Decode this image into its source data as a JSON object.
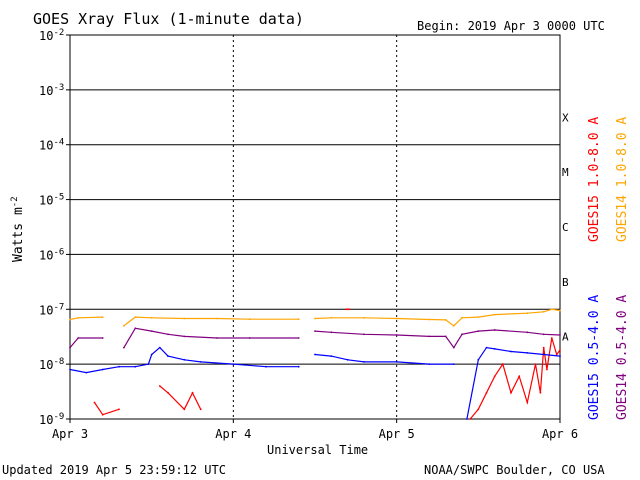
{
  "chart_data": {
    "type": "line",
    "title": "GOES Xray Flux (1-minute data)",
    "begin_label": "Begin:  2019 Apr 3 0000 UTC",
    "xlabel": "Universal Time",
    "ylabel": "Watts m",
    "ylabel_superscript": "-2",
    "x_tick_labels": [
      "Apr 3",
      "Apr 4",
      "Apr 5",
      "Apr 6"
    ],
    "xlim_days": [
      0,
      3
    ],
    "ylim_log10": [
      -9,
      -2
    ],
    "y_ticks": [
      {
        "base": "10",
        "exp": "-2"
      },
      {
        "base": "10",
        "exp": "-3"
      },
      {
        "base": "10",
        "exp": "-4"
      },
      {
        "base": "10",
        "exp": "-5"
      },
      {
        "base": "10",
        "exp": "-6"
      },
      {
        "base": "10",
        "exp": "-7"
      },
      {
        "base": "10",
        "exp": "-8"
      },
      {
        "base": "10",
        "exp": "-9"
      }
    ],
    "flare_classes": [
      {
        "label": "X",
        "log10": -3.5
      },
      {
        "label": "M",
        "log10": -4.5
      },
      {
        "label": "C",
        "log10": -5.5
      },
      {
        "label": "B",
        "log10": -6.5
      },
      {
        "label": "A",
        "log10": -7.5
      }
    ],
    "series": [
      {
        "name": "GOES15 1.0-8.0 A",
        "color": "#ff0000",
        "x": [
          0.0,
          0.15,
          0.2,
          0.3,
          0.4,
          0.55,
          0.6,
          0.7,
          0.75,
          0.8,
          0.9,
          1.0,
          1.2,
          1.5,
          1.67,
          1.69,
          1.7,
          1.71,
          1.73,
          1.8,
          2.0,
          2.3,
          2.4,
          2.45,
          2.5,
          2.55,
          2.6,
          2.65,
          2.7,
          2.75,
          2.8,
          2.85,
          2.88,
          2.9,
          2.92,
          2.95,
          2.98,
          3.0
        ],
        "y": [
          null,
          2e-09,
          1.2e-09,
          1.5e-09,
          null,
          4e-09,
          3e-09,
          1.5e-09,
          3e-09,
          1.5e-09,
          null,
          null,
          null,
          null,
          null,
          1e-07,
          1e-07,
          1e-07,
          null,
          null,
          null,
          null,
          null,
          1e-09,
          1.5e-09,
          3e-09,
          6e-09,
          1e-08,
          3e-09,
          6e-09,
          2e-09,
          1e-08,
          3e-09,
          2e-08,
          8e-09,
          3e-08,
          1.5e-08,
          1.8e-08
        ]
      },
      {
        "name": "GOES14 1.0-8.0 A",
        "color": "#ffa500",
        "x": [
          0.0,
          0.05,
          0.2,
          0.3,
          0.33,
          0.4,
          0.5,
          0.7,
          0.9,
          1.1,
          1.4,
          1.45,
          1.5,
          1.6,
          1.8,
          2.0,
          2.2,
          2.3,
          2.35,
          2.4,
          2.5,
          2.6,
          2.8,
          2.9,
          2.95,
          3.0
        ],
        "y": [
          6.5e-08,
          7e-08,
          7.2e-08,
          null,
          5e-08,
          7.2e-08,
          7e-08,
          6.8e-08,
          6.8e-08,
          6.6e-08,
          6.6e-08,
          null,
          6.8e-08,
          7e-08,
          7e-08,
          6.8e-08,
          6.5e-08,
          6.4e-08,
          5e-08,
          7e-08,
          7.2e-08,
          8e-08,
          8.5e-08,
          9e-08,
          1e-07,
          9.5e-08
        ]
      },
      {
        "name": "GOES15 0.5-4.0 A",
        "color": "#0000ff",
        "x": [
          0.0,
          0.1,
          0.2,
          0.3,
          0.4,
          0.48,
          0.5,
          0.55,
          0.6,
          0.7,
          0.8,
          1.0,
          1.2,
          1.4,
          1.45,
          1.5,
          1.6,
          1.7,
          1.8,
          2.0,
          2.2,
          2.35,
          2.4,
          2.43,
          2.5,
          2.55,
          2.6,
          2.7,
          2.8,
          2.9,
          3.0
        ],
        "y": [
          8e-09,
          7e-09,
          8e-09,
          9e-09,
          9e-09,
          1e-08,
          1.5e-08,
          2e-08,
          1.4e-08,
          1.2e-08,
          1.1e-08,
          1e-08,
          9e-09,
          9e-09,
          null,
          1.5e-08,
          1.4e-08,
          1.2e-08,
          1.1e-08,
          1.1e-08,
          1e-08,
          1e-08,
          null,
          1e-09,
          1.2e-08,
          2e-08,
          1.9e-08,
          1.7e-08,
          1.6e-08,
          1.5e-08,
          1.4e-08
        ]
      },
      {
        "name": "GOES14 0.5-4.0 A",
        "color": "#800080",
        "x": [
          0.0,
          0.05,
          0.2,
          0.3,
          0.33,
          0.4,
          0.5,
          0.6,
          0.7,
          0.9,
          1.1,
          1.4,
          1.45,
          1.5,
          1.6,
          1.8,
          2.0,
          2.2,
          2.3,
          2.35,
          2.4,
          2.5,
          2.6,
          2.8,
          2.9,
          3.0
        ],
        "y": [
          2e-08,
          3e-08,
          3e-08,
          null,
          2e-08,
          4.5e-08,
          4e-08,
          3.5e-08,
          3.2e-08,
          3e-08,
          3e-08,
          3e-08,
          null,
          4e-08,
          3.8e-08,
          3.5e-08,
          3.4e-08,
          3.2e-08,
          3.2e-08,
          2e-08,
          3.5e-08,
          4e-08,
          4.2e-08,
          3.8e-08,
          3.5e-08,
          3.4e-08
        ]
      }
    ]
  },
  "footer": {
    "updated": "Updated 2019 Apr  5 23:59:12 UTC",
    "credit": "NOAA/SWPC Boulder, CO USA"
  }
}
